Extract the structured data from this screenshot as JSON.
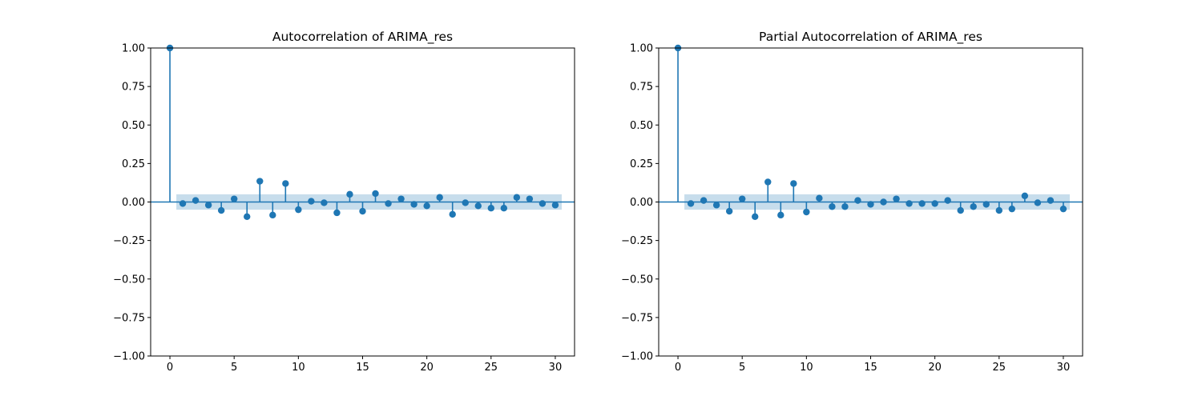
{
  "figure": {
    "background": "#ffffff",
    "stem_color": "#1f77b4",
    "band_color": "#1f77b4",
    "band_opacity": 0.25
  },
  "chart_data": [
    {
      "type": "stem",
      "title": "Autocorrelation of ARIMA_res",
      "xlabel": "",
      "ylabel": "",
      "xlim": [
        -1.5,
        31.5
      ],
      "ylim": [
        -1.0,
        1.0
      ],
      "xticks": [
        0,
        5,
        10,
        15,
        20,
        25,
        30
      ],
      "xtick_labels": [
        "0",
        "5",
        "10",
        "15",
        "20",
        "25",
        "30"
      ],
      "yticks": [
        1.0,
        0.75,
        0.5,
        0.25,
        0.0,
        -0.25,
        -0.5,
        -0.75,
        -1.0
      ],
      "ytick_labels": [
        "1.00",
        "0.75",
        "0.50",
        "0.25",
        "0.00",
        "−0.25",
        "−0.50",
        "−0.75",
        "−1.00"
      ],
      "grid": false,
      "confidence_band": {
        "x_range": [
          0.5,
          30.5
        ],
        "lower": -0.05,
        "upper": 0.05
      },
      "lags": [
        0,
        1,
        2,
        3,
        4,
        5,
        6,
        7,
        8,
        9,
        10,
        11,
        12,
        13,
        14,
        15,
        16,
        17,
        18,
        19,
        20,
        21,
        22,
        23,
        24,
        25,
        26,
        27,
        28,
        29,
        30
      ],
      "values": [
        1.0,
        -0.01,
        0.01,
        -0.02,
        -0.055,
        0.02,
        -0.095,
        0.135,
        -0.085,
        0.12,
        -0.05,
        0.005,
        -0.005,
        -0.07,
        0.05,
        -0.06,
        0.055,
        -0.01,
        0.02,
        -0.015,
        -0.025,
        0.03,
        -0.08,
        -0.005,
        -0.025,
        -0.04,
        -0.04,
        0.03,
        0.02,
        -0.01,
        -0.02
      ]
    },
    {
      "type": "stem",
      "title": "Partial Autocorrelation of ARIMA_res",
      "xlabel": "",
      "ylabel": "",
      "xlim": [
        -1.5,
        31.5
      ],
      "ylim": [
        -1.0,
        1.0
      ],
      "xticks": [
        0,
        5,
        10,
        15,
        20,
        25,
        30
      ],
      "xtick_labels": [
        "0",
        "5",
        "10",
        "15",
        "20",
        "25",
        "30"
      ],
      "yticks": [
        1.0,
        0.75,
        0.5,
        0.25,
        0.0,
        -0.25,
        -0.5,
        -0.75,
        -1.0
      ],
      "ytick_labels": [
        "1.00",
        "0.75",
        "0.50",
        "0.25",
        "0.00",
        "−0.25",
        "−0.50",
        "−0.75",
        "−1.00"
      ],
      "grid": false,
      "confidence_band": {
        "x_range": [
          0.5,
          30.5
        ],
        "lower": -0.05,
        "upper": 0.05
      },
      "lags": [
        0,
        1,
        2,
        3,
        4,
        5,
        6,
        7,
        8,
        9,
        10,
        11,
        12,
        13,
        14,
        15,
        16,
        17,
        18,
        19,
        20,
        21,
        22,
        23,
        24,
        25,
        26,
        27,
        28,
        29,
        30
      ],
      "values": [
        1.0,
        -0.01,
        0.01,
        -0.02,
        -0.06,
        0.02,
        -0.095,
        0.13,
        -0.085,
        0.12,
        -0.065,
        0.025,
        -0.03,
        -0.03,
        0.01,
        -0.015,
        0.0,
        0.02,
        -0.01,
        -0.01,
        -0.01,
        0.01,
        -0.055,
        -0.03,
        -0.015,
        -0.055,
        -0.045,
        0.04,
        -0.005,
        0.01,
        -0.045
      ]
    }
  ]
}
